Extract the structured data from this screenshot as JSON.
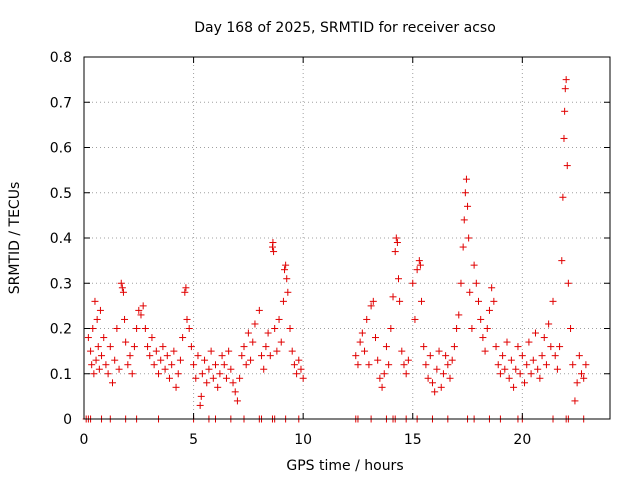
{
  "chart_data": {
    "type": "scatter",
    "title": "Day 168 of 2025, SRMTID for receiver acso",
    "xlabel": "GPS time / hours",
    "ylabel": "SRMTID / TECUs",
    "xlim": [
      0,
      24
    ],
    "ylim": [
      0,
      0.8
    ],
    "xticks": [
      0,
      5,
      10,
      15,
      20
    ],
    "yticks": [
      0,
      0.1,
      0.2,
      0.3,
      0.4,
      0.5,
      0.6,
      0.7,
      0.8
    ],
    "grid": true,
    "marker": "+",
    "series_color": "#e00000",
    "series": [
      {
        "name": "SRMTID",
        "points": [
          [
            0.1,
            0.0
          ],
          [
            0.2,
            0.0
          ],
          [
            0.3,
            0.0
          ],
          [
            0.8,
            0.0
          ],
          [
            1.2,
            0.0
          ],
          [
            1.9,
            0.0
          ],
          [
            2.4,
            0.0
          ],
          [
            3.4,
            0.0
          ],
          [
            5.0,
            0.0
          ],
          [
            5.7,
            0.0
          ],
          [
            6.0,
            0.0
          ],
          [
            6.7,
            0.0
          ],
          [
            7.3,
            0.0
          ],
          [
            8.0,
            0.0
          ],
          [
            8.1,
            0.0
          ],
          [
            8.6,
            0.0
          ],
          [
            8.7,
            0.0
          ],
          [
            9.2,
            0.0
          ],
          [
            9.8,
            0.0
          ],
          [
            12.4,
            0.0
          ],
          [
            12.5,
            0.0
          ],
          [
            13.1,
            0.0
          ],
          [
            13.8,
            0.0
          ],
          [
            14.1,
            0.0
          ],
          [
            14.2,
            0.0
          ],
          [
            14.7,
            0.0
          ],
          [
            15.2,
            0.0
          ],
          [
            15.9,
            0.0
          ],
          [
            16.6,
            0.0
          ],
          [
            17.5,
            0.0
          ],
          [
            17.8,
            0.0
          ],
          [
            18.5,
            0.0
          ],
          [
            19.0,
            0.0
          ],
          [
            19.8,
            0.0
          ],
          [
            20.0,
            0.0
          ],
          [
            21.4,
            0.0
          ],
          [
            22.0,
            0.0
          ],
          [
            22.1,
            0.0
          ],
          [
            22.8,
            0.0
          ],
          [
            0.2,
            0.18
          ],
          [
            0.3,
            0.15
          ],
          [
            0.35,
            0.12
          ],
          [
            0.4,
            0.2
          ],
          [
            0.45,
            0.1
          ],
          [
            0.5,
            0.26
          ],
          [
            0.55,
            0.13
          ],
          [
            0.6,
            0.22
          ],
          [
            0.65,
            0.16
          ],
          [
            0.7,
            0.11
          ],
          [
            0.75,
            0.24
          ],
          [
            0.8,
            0.14
          ],
          [
            0.9,
            0.18
          ],
          [
            1.0,
            0.12
          ],
          [
            1.1,
            0.1
          ],
          [
            1.2,
            0.16
          ],
          [
            1.3,
            0.08
          ],
          [
            1.4,
            0.13
          ],
          [
            1.5,
            0.2
          ],
          [
            1.6,
            0.11
          ],
          [
            1.7,
            0.3
          ],
          [
            1.75,
            0.29
          ],
          [
            1.8,
            0.28
          ],
          [
            1.85,
            0.22
          ],
          [
            1.9,
            0.17
          ],
          [
            2.0,
            0.12
          ],
          [
            2.1,
            0.14
          ],
          [
            2.2,
            0.1
          ],
          [
            2.3,
            0.16
          ],
          [
            2.4,
            0.2
          ],
          [
            2.5,
            0.24
          ],
          [
            2.6,
            0.23
          ],
          [
            2.7,
            0.25
          ],
          [
            2.8,
            0.2
          ],
          [
            2.9,
            0.16
          ],
          [
            3.0,
            0.14
          ],
          [
            3.1,
            0.18
          ],
          [
            3.2,
            0.12
          ],
          [
            3.3,
            0.15
          ],
          [
            3.4,
            0.1
          ],
          [
            3.5,
            0.13
          ],
          [
            3.6,
            0.16
          ],
          [
            3.7,
            0.11
          ],
          [
            3.8,
            0.14
          ],
          [
            3.9,
            0.09
          ],
          [
            4.0,
            0.12
          ],
          [
            4.1,
            0.15
          ],
          [
            4.2,
            0.07
          ],
          [
            4.3,
            0.1
          ],
          [
            4.4,
            0.13
          ],
          [
            4.5,
            0.18
          ],
          [
            4.6,
            0.28
          ],
          [
            4.65,
            0.29
          ],
          [
            4.7,
            0.22
          ],
          [
            4.8,
            0.2
          ],
          [
            4.9,
            0.16
          ],
          [
            5.0,
            0.12
          ],
          [
            5.1,
            0.09
          ],
          [
            5.2,
            0.14
          ],
          [
            5.3,
            0.03
          ],
          [
            5.35,
            0.05
          ],
          [
            5.4,
            0.1
          ],
          [
            5.5,
            0.13
          ],
          [
            5.6,
            0.08
          ],
          [
            5.7,
            0.11
          ],
          [
            5.8,
            0.15
          ],
          [
            5.9,
            0.09
          ],
          [
            6.0,
            0.12
          ],
          [
            6.1,
            0.07
          ],
          [
            6.2,
            0.1
          ],
          [
            6.3,
            0.14
          ],
          [
            6.4,
            0.12
          ],
          [
            6.5,
            0.09
          ],
          [
            6.6,
            0.15
          ],
          [
            6.7,
            0.11
          ],
          [
            6.8,
            0.08
          ],
          [
            6.9,
            0.06
          ],
          [
            7.0,
            0.04
          ],
          [
            7.1,
            0.09
          ],
          [
            7.2,
            0.14
          ],
          [
            7.3,
            0.16
          ],
          [
            7.4,
            0.12
          ],
          [
            7.5,
            0.19
          ],
          [
            7.6,
            0.13
          ],
          [
            7.7,
            0.17
          ],
          [
            7.8,
            0.21
          ],
          [
            8.0,
            0.24
          ],
          [
            8.1,
            0.14
          ],
          [
            8.2,
            0.11
          ],
          [
            8.3,
            0.16
          ],
          [
            8.4,
            0.19
          ],
          [
            8.5,
            0.14
          ],
          [
            8.6,
            0.38
          ],
          [
            8.62,
            0.39
          ],
          [
            8.65,
            0.37
          ],
          [
            8.7,
            0.2
          ],
          [
            8.8,
            0.15
          ],
          [
            8.9,
            0.22
          ],
          [
            9.0,
            0.17
          ],
          [
            9.1,
            0.26
          ],
          [
            9.15,
            0.33
          ],
          [
            9.2,
            0.34
          ],
          [
            9.25,
            0.31
          ],
          [
            9.3,
            0.28
          ],
          [
            9.4,
            0.2
          ],
          [
            9.5,
            0.15
          ],
          [
            9.6,
            0.12
          ],
          [
            9.7,
            0.1
          ],
          [
            9.8,
            0.13
          ],
          [
            9.9,
            0.11
          ],
          [
            10.0,
            0.09
          ],
          [
            12.4,
            0.14
          ],
          [
            12.5,
            0.12
          ],
          [
            12.6,
            0.17
          ],
          [
            12.7,
            0.19
          ],
          [
            12.8,
            0.15
          ],
          [
            12.9,
            0.22
          ],
          [
            13.0,
            0.12
          ],
          [
            13.1,
            0.25
          ],
          [
            13.2,
            0.26
          ],
          [
            13.3,
            0.18
          ],
          [
            13.4,
            0.13
          ],
          [
            13.5,
            0.09
          ],
          [
            13.6,
            0.07
          ],
          [
            13.7,
            0.1
          ],
          [
            13.8,
            0.16
          ],
          [
            13.9,
            0.12
          ],
          [
            14.0,
            0.2
          ],
          [
            14.1,
            0.27
          ],
          [
            14.2,
            0.37
          ],
          [
            14.25,
            0.4
          ],
          [
            14.3,
            0.39
          ],
          [
            14.35,
            0.31
          ],
          [
            14.4,
            0.26
          ],
          [
            14.5,
            0.15
          ],
          [
            14.6,
            0.12
          ],
          [
            14.7,
            0.1
          ],
          [
            14.8,
            0.13
          ],
          [
            15.0,
            0.3
          ],
          [
            15.1,
            0.22
          ],
          [
            15.2,
            0.33
          ],
          [
            15.3,
            0.35
          ],
          [
            15.35,
            0.34
          ],
          [
            15.4,
            0.26
          ],
          [
            15.5,
            0.16
          ],
          [
            15.6,
            0.12
          ],
          [
            15.7,
            0.09
          ],
          [
            15.8,
            0.14
          ],
          [
            15.9,
            0.08
          ],
          [
            16.0,
            0.06
          ],
          [
            16.1,
            0.11
          ],
          [
            16.2,
            0.15
          ],
          [
            16.3,
            0.07
          ],
          [
            16.4,
            0.1
          ],
          [
            16.5,
            0.14
          ],
          [
            16.6,
            0.12
          ],
          [
            16.7,
            0.09
          ],
          [
            16.8,
            0.13
          ],
          [
            16.9,
            0.16
          ],
          [
            17.0,
            0.2
          ],
          [
            17.1,
            0.23
          ],
          [
            17.2,
            0.3
          ],
          [
            17.3,
            0.38
          ],
          [
            17.35,
            0.44
          ],
          [
            17.4,
            0.5
          ],
          [
            17.45,
            0.53
          ],
          [
            17.5,
            0.47
          ],
          [
            17.55,
            0.4
          ],
          [
            17.6,
            0.28
          ],
          [
            17.7,
            0.2
          ],
          [
            17.8,
            0.34
          ],
          [
            17.9,
            0.3
          ],
          [
            18.0,
            0.26
          ],
          [
            18.1,
            0.22
          ],
          [
            18.2,
            0.18
          ],
          [
            18.3,
            0.15
          ],
          [
            18.4,
            0.2
          ],
          [
            18.5,
            0.24
          ],
          [
            18.6,
            0.29
          ],
          [
            18.7,
            0.26
          ],
          [
            18.8,
            0.16
          ],
          [
            18.9,
            0.12
          ],
          [
            19.0,
            0.1
          ],
          [
            19.1,
            0.14
          ],
          [
            19.2,
            0.11
          ],
          [
            19.3,
            0.17
          ],
          [
            19.4,
            0.09
          ],
          [
            19.5,
            0.13
          ],
          [
            19.6,
            0.07
          ],
          [
            19.7,
            0.11
          ],
          [
            19.8,
            0.16
          ],
          [
            19.9,
            0.1
          ],
          [
            20.0,
            0.14
          ],
          [
            20.1,
            0.08
          ],
          [
            20.2,
            0.12
          ],
          [
            20.3,
            0.17
          ],
          [
            20.4,
            0.1
          ],
          [
            20.5,
            0.13
          ],
          [
            20.6,
            0.19
          ],
          [
            20.7,
            0.11
          ],
          [
            20.8,
            0.09
          ],
          [
            20.9,
            0.14
          ],
          [
            21.0,
            0.18
          ],
          [
            21.1,
            0.12
          ],
          [
            21.2,
            0.21
          ],
          [
            21.3,
            0.16
          ],
          [
            21.4,
            0.26
          ],
          [
            21.5,
            0.14
          ],
          [
            21.6,
            0.11
          ],
          [
            21.7,
            0.16
          ],
          [
            21.8,
            0.35
          ],
          [
            21.85,
            0.49
          ],
          [
            21.9,
            0.62
          ],
          [
            21.93,
            0.68
          ],
          [
            21.96,
            0.73
          ],
          [
            22.0,
            0.75
          ],
          [
            22.05,
            0.56
          ],
          [
            22.1,
            0.3
          ],
          [
            22.2,
            0.2
          ],
          [
            22.3,
            0.12
          ],
          [
            22.4,
            0.04
          ],
          [
            22.5,
            0.08
          ],
          [
            22.6,
            0.14
          ],
          [
            22.7,
            0.1
          ],
          [
            22.8,
            0.09
          ],
          [
            22.9,
            0.12
          ]
        ]
      }
    ]
  }
}
